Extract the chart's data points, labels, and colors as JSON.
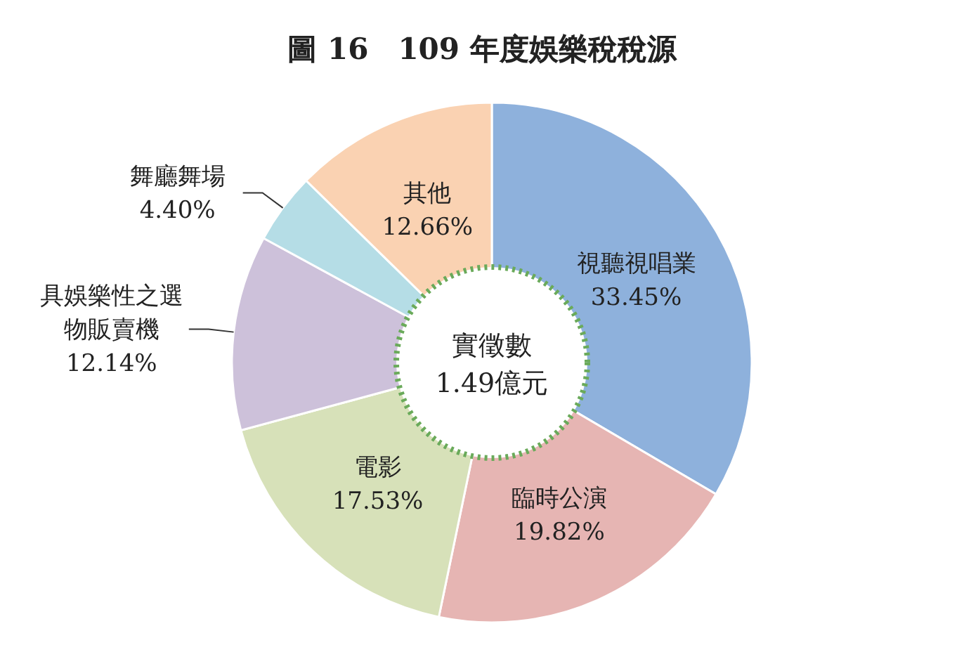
{
  "chart_data": {
    "type": "donut",
    "title": "圖 16　109 年度娛樂稅稅源",
    "categories": [
      "視聽視唱業",
      "臨時公演",
      "電影",
      "具娛樂性之選物販賣機",
      "舞廳舞場",
      "其他"
    ],
    "values": [
      33.45,
      19.82,
      17.53,
      12.14,
      4.4,
      12.66
    ],
    "colors": [
      "#8eb1dc",
      "#e6b5b3",
      "#d7e1b9",
      "#cdc1da",
      "#b5dde6",
      "#fad2b2"
    ],
    "value_labels": [
      "33.45%",
      "19.82%",
      "17.53%",
      "12.14%",
      "4.40%",
      "12.66%"
    ],
    "annotations": [
      "實徵數",
      "1.49億元"
    ],
    "legend": false
  }
}
